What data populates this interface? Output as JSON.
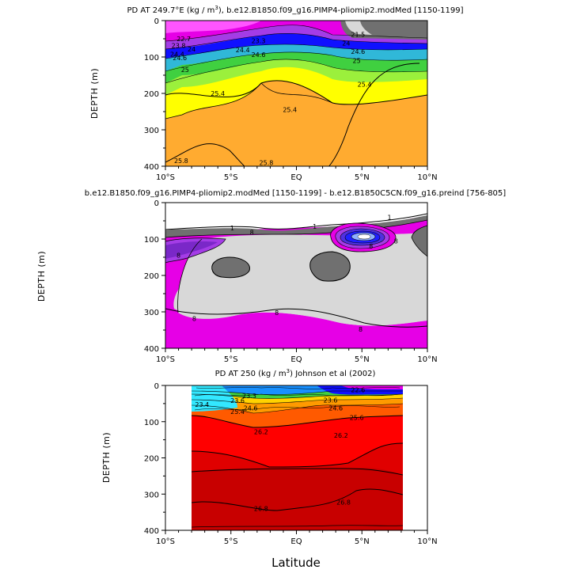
{
  "figure": {
    "xlabel": "Latitude",
    "x_tick_labels": [
      "10°S",
      "5°S",
      "EQ",
      "5°N",
      "10°N"
    ],
    "y_tick_labels": [
      "0",
      "100",
      "200",
      "300",
      "400"
    ]
  },
  "colors": {
    "magenta": "#e600e6",
    "purple": "#a43ce6",
    "blue": "#1010ff",
    "cyan": "#33e8ff",
    "green": "#40d040",
    "yellow": "#ffff00",
    "orange": "#ffab30",
    "orange_red": "#ff5a00",
    "red": "#ff0000",
    "dark_red": "#d40000",
    "light_gray": "#d8d8d8",
    "dark_gray": "#707070"
  },
  "chart_data": [
    {
      "type": "contour",
      "title_prefix": "PD AT 249.7°E (kg / m",
      "title_sup": "3",
      "title_suffix": "), b.e12.B1850.f09_g16.PIMP4-pliomip2.modMed [1150-1199]",
      "xlabel": "Latitude",
      "ylabel": "DEPTH (m)",
      "xlim": [
        -10,
        10
      ],
      "ylim": [
        400,
        0
      ],
      "x_ticks": [
        -10,
        -5,
        0,
        5,
        10
      ],
      "y_ticks": [
        0,
        100,
        200,
        300,
        400
      ],
      "contour_labels": [
        {
          "lat": -8.6,
          "depth": 50,
          "text": "22.7"
        },
        {
          "lat": -2.9,
          "depth": 55,
          "text": "23.3"
        },
        {
          "lat": -9.0,
          "depth": 68,
          "text": "23.8"
        },
        {
          "lat": -8.0,
          "depth": 78,
          "text": "24"
        },
        {
          "lat": -4.1,
          "depth": 80,
          "text": "24.4"
        },
        {
          "lat": -9.1,
          "depth": 92,
          "text": "24.4"
        },
        {
          "lat": -8.9,
          "depth": 102,
          "text": "24.6"
        },
        {
          "lat": -2.9,
          "depth": 94,
          "text": "24.6"
        },
        {
          "lat": -8.5,
          "depth": 135,
          "text": "25"
        },
        {
          "lat": 4.6,
          "depth": 110,
          "text": "25"
        },
        {
          "lat": 4.7,
          "depth": 85,
          "text": "24.6"
        },
        {
          "lat": 3.8,
          "depth": 62,
          "text": "24"
        },
        {
          "lat": 4.7,
          "depth": 38,
          "text": "21.5"
        },
        {
          "lat": -6.0,
          "depth": 200,
          "text": "25.4"
        },
        {
          "lat": -0.5,
          "depth": 245,
          "text": "25.4"
        },
        {
          "lat": 5.2,
          "depth": 175,
          "text": "25.4"
        },
        {
          "lat": -8.8,
          "depth": 385,
          "text": "25.8"
        },
        {
          "lat": -2.3,
          "depth": 390,
          "text": "25.8"
        }
      ]
    },
    {
      "type": "contour",
      "title": "b.e12.B1850.f09_g16.PIMP4-pliomip2.modMed [1150-1199] - b.e12.B1850C5CN.f09_g16.preind [756-805]",
      "xlabel": "Latitude",
      "ylabel": "DEPTH (m)",
      "xlim": [
        -10,
        10
      ],
      "ylim": [
        400,
        0
      ],
      "x_ticks": [
        -10,
        -5,
        0,
        5,
        10
      ],
      "y_ticks": [
        0,
        100,
        200,
        300,
        400
      ],
      "contour_labels": [
        {
          "lat": -4.9,
          "depth": 70,
          "text": "1"
        },
        {
          "lat": 1.4,
          "depth": 65,
          "text": "1"
        },
        {
          "lat": 7.1,
          "depth": 40,
          "text": "1"
        },
        {
          "lat": -3.4,
          "depth": 82,
          "text": "8"
        },
        {
          "lat": -9.0,
          "depth": 145,
          "text": "8"
        },
        {
          "lat": 5.7,
          "depth": 120,
          "text": "8"
        },
        {
          "lat": 7.6,
          "depth": 105,
          "text": "8"
        },
        {
          "lat": -7.8,
          "depth": 318,
          "text": "8"
        },
        {
          "lat": -1.5,
          "depth": 302,
          "text": "8"
        },
        {
          "lat": 4.9,
          "depth": 348,
          "text": "8"
        }
      ]
    },
    {
      "type": "contour",
      "title_prefix": "PD AT 250 (kg / m",
      "title_sup": "3",
      "title_suffix": ") Johnson et al (2002)",
      "xlabel": "Latitude",
      "ylabel": "DEPTH (m)",
      "xlim": [
        -10,
        10
      ],
      "ylim": [
        400,
        0
      ],
      "data_lat_range": [
        -8,
        8
      ],
      "x_ticks": [
        -10,
        -5,
        0,
        5,
        10
      ],
      "y_ticks": [
        0,
        100,
        200,
        300,
        400
      ],
      "contour_labels": [
        {
          "lat": -7.2,
          "depth": 52,
          "text": "23.4"
        },
        {
          "lat": -3.6,
          "depth": 28,
          "text": "23.3"
        },
        {
          "lat": -4.5,
          "depth": 42,
          "text": "23.6"
        },
        {
          "lat": -3.5,
          "depth": 62,
          "text": "24.6"
        },
        {
          "lat": -4.5,
          "depth": 72,
          "text": "25.4"
        },
        {
          "lat": 2.6,
          "depth": 40,
          "text": "23.6"
        },
        {
          "lat": 3.0,
          "depth": 62,
          "text": "24.6"
        },
        {
          "lat": 4.7,
          "depth": 12,
          "text": "22.6"
        },
        {
          "lat": 4.6,
          "depth": 88,
          "text": "25.6"
        },
        {
          "lat": -2.7,
          "depth": 128,
          "text": "26.2"
        },
        {
          "lat": 3.4,
          "depth": 138,
          "text": "26.2"
        },
        {
          "lat": -2.7,
          "depth": 340,
          "text": "26.8"
        },
        {
          "lat": 3.6,
          "depth": 322,
          "text": "26.8"
        }
      ]
    }
  ]
}
